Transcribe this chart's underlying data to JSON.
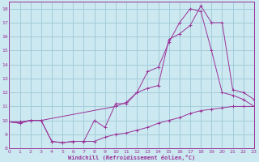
{
  "background_color": "#cce8f0",
  "grid_color": "#9ec8d8",
  "line_color": "#993399",
  "xlabel": "Windchill (Refroidissement éolien,°C)",
  "xlim": [
    0,
    23
  ],
  "ylim": [
    8,
    18.5
  ],
  "yticks": [
    8,
    9,
    10,
    11,
    12,
    13,
    14,
    15,
    16,
    17,
    18
  ],
  "xticks": [
    0,
    1,
    2,
    3,
    4,
    5,
    6,
    7,
    8,
    9,
    10,
    11,
    12,
    13,
    14,
    15,
    16,
    17,
    18,
    19,
    20,
    21,
    22,
    23
  ],
  "curve1_x": [
    0,
    1,
    2,
    3,
    4,
    5,
    6,
    7,
    8,
    9,
    10,
    11,
    12,
    13,
    14,
    15,
    16,
    17,
    18,
    19,
    20,
    21,
    22,
    23
  ],
  "curve1_y": [
    9.9,
    9.8,
    10.0,
    10.0,
    8.5,
    8.4,
    8.5,
    8.5,
    8.5,
    8.8,
    9.0,
    9.1,
    9.3,
    9.5,
    9.8,
    10.0,
    10.2,
    10.5,
    10.7,
    10.8,
    10.9,
    11.0,
    11.0,
    11.0
  ],
  "curve2_x": [
    0,
    1,
    2,
    3,
    4,
    5,
    6,
    7,
    8,
    9,
    10,
    11,
    12,
    13,
    14,
    15,
    16,
    17,
    18,
    19,
    20,
    21,
    22,
    23
  ],
  "curve2_y": [
    9.9,
    9.8,
    10.0,
    10.0,
    8.5,
    8.4,
    8.5,
    8.5,
    10.0,
    9.5,
    11.2,
    11.2,
    12.0,
    13.5,
    13.8,
    15.6,
    17.0,
    18.0,
    17.8,
    15.0,
    12.0,
    11.8,
    11.5,
    11.0
  ],
  "curve3_x": [
    0,
    1,
    2,
    3,
    10,
    11,
    12,
    13,
    14,
    15,
    16,
    17,
    18,
    19,
    20,
    21,
    22,
    23
  ],
  "curve3_y": [
    9.9,
    9.9,
    10.0,
    10.0,
    11.0,
    11.3,
    12.0,
    12.3,
    12.5,
    15.8,
    16.2,
    16.8,
    18.2,
    17.0,
    17.0,
    12.2,
    12.0,
    11.5
  ]
}
